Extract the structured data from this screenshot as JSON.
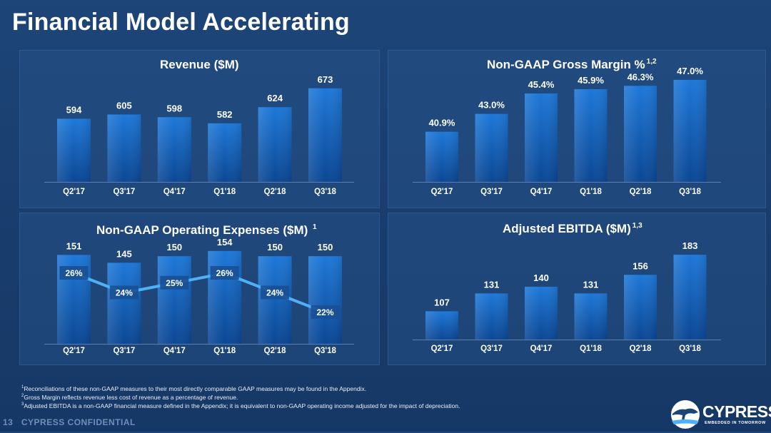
{
  "slide": {
    "title": "Financial Model Accelerating",
    "page_number": "13",
    "confidential": "CYPRESS CONFIDENTIAL",
    "logo": {
      "text": "CYPRESS",
      "tagline": "EMBEDDED IN TOMORROW"
    },
    "footnotes": [
      {
        "mark": "1",
        "text": "Reconciliations of these non-GAAP measures to their most directly comparable GAAP measures may be found in the Appendix."
      },
      {
        "mark": "2",
        "text": "Gross Margin reflects revenue less cost of revenue as a percentage of revenue."
      },
      {
        "mark": "3",
        "text": "Adjusted EBITDA is a non-GAAP financial measure defined in the Appendix; it is equivalent to non-GAAP operating income adjusted for the impact of depreciation."
      }
    ]
  },
  "colors": {
    "background": "#183c6c",
    "bar_top": "#1e78d8",
    "bar_bottom": "#0b4794",
    "line": "#4fb0f5",
    "text": "#ffffff"
  },
  "chart_data": [
    {
      "type": "bar",
      "title": "Revenue ($M)",
      "title_sup": "",
      "categories": [
        "Q2'17",
        "Q3'17",
        "Q4'17",
        "Q1'18",
        "Q2'18",
        "Q3'18"
      ],
      "values": [
        594,
        605,
        598,
        582,
        624,
        673
      ],
      "labels": [
        "594",
        "605",
        "598",
        "582",
        "624",
        "673"
      ],
      "ylim": [
        430,
        680
      ]
    },
    {
      "type": "bar",
      "title": "Non-GAAP Gross Margin %",
      "title_sup": "1,2",
      "categories": [
        "Q2'17",
        "Q3'17",
        "Q4'17",
        "Q1'18",
        "Q2'18",
        "Q3'18"
      ],
      "values": [
        40.9,
        43.0,
        45.4,
        45.9,
        46.3,
        47.0
      ],
      "labels": [
        "40.9%",
        "43.0%",
        "45.4%",
        "45.9%",
        "46.3%",
        "47.0%"
      ],
      "ylim": [
        35,
        47.5
      ]
    },
    {
      "type": "bar",
      "title": "Non-GAAP Operating Expenses ($M)",
      "title_sup": "1",
      "categories": [
        "Q2'17",
        "Q3'17",
        "Q4'17",
        "Q1'18",
        "Q2'18",
        "Q3'18"
      ],
      "values": [
        151,
        145,
        150,
        154,
        150,
        150
      ],
      "labels": [
        "151",
        "145",
        "150",
        "154",
        "150",
        "150"
      ],
      "ylim": [
        83,
        155
      ],
      "line_series": {
        "values": [
          26,
          24,
          25,
          26,
          24,
          22
        ],
        "labels": [
          "26%",
          "24%",
          "25%",
          "26%",
          "24%",
          "22%"
        ],
        "ylim": [
          14,
          28
        ]
      }
    },
    {
      "type": "bar",
      "title": "Adjusted EBITDA ($M)",
      "title_sup": "1,3",
      "categories": [
        "Q2'17",
        "Q3'17",
        "Q4'17",
        "Q1'18",
        "Q2'18",
        "Q3'18"
      ],
      "values": [
        107,
        131,
        140,
        131,
        156,
        183
      ],
      "labels": [
        "107",
        "131",
        "140",
        "131",
        "156",
        "183"
      ],
      "ylim": [
        69,
        185
      ]
    }
  ]
}
